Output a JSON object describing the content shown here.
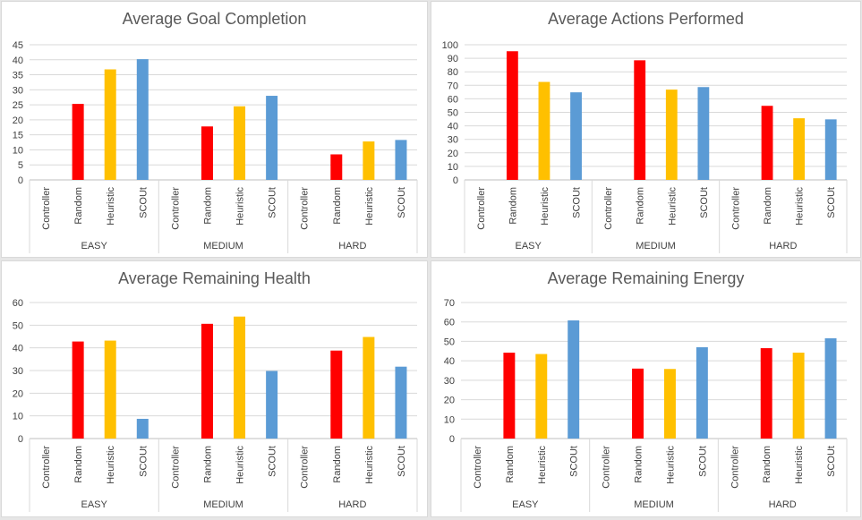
{
  "colors": {
    "Controller": "#7f7f7f",
    "Random": "#ff0000",
    "Heuristic": "#ffc000",
    "SCOUt": "#5b9bd5"
  },
  "chart_data": [
    {
      "type": "bar",
      "title": "Average Goal Completion",
      "groups": [
        "EASY",
        "MEDIUM",
        "HARD"
      ],
      "categories": [
        "Controller",
        "Random",
        "Heuristic",
        "SCOUt"
      ],
      "values": [
        [
          0,
          25.3,
          36.8,
          40.2
        ],
        [
          0,
          17.8,
          24.5,
          28.0
        ],
        [
          0,
          8.5,
          12.8,
          13.3
        ]
      ],
      "ylim": [
        0,
        45
      ],
      "yticks": [
        0,
        5,
        10,
        15,
        20,
        25,
        30,
        35,
        40,
        45
      ],
      "grid": true
    },
    {
      "type": "bar",
      "title": "Average Actions Performed",
      "groups": [
        "EASY",
        "MEDIUM",
        "HARD"
      ],
      "categories": [
        "Controller",
        "Random",
        "Heuristic",
        "SCOUt"
      ],
      "values": [
        [
          0,
          95.2,
          72.5,
          64.8
        ],
        [
          0,
          88.5,
          66.8,
          68.7
        ],
        [
          0,
          54.8,
          45.6,
          44.8
        ]
      ],
      "ylim": [
        0,
        100
      ],
      "yticks": [
        0,
        10,
        20,
        30,
        40,
        50,
        60,
        70,
        80,
        90,
        100
      ],
      "grid": true
    },
    {
      "type": "bar",
      "title": "Average Remaining Health",
      "groups": [
        "EASY",
        "MEDIUM",
        "HARD"
      ],
      "categories": [
        "Controller",
        "Random",
        "Heuristic",
        "SCOUt"
      ],
      "values": [
        [
          0,
          42.8,
          43.2,
          8.7
        ],
        [
          0,
          50.6,
          53.8,
          29.8
        ],
        [
          0,
          38.8,
          44.8,
          31.7
        ]
      ],
      "ylim": [
        0,
        60
      ],
      "yticks": [
        0,
        10,
        20,
        30,
        40,
        50,
        60
      ],
      "grid": true
    },
    {
      "type": "bar",
      "title": "Average Remaining Energy",
      "groups": [
        "EASY",
        "MEDIUM",
        "HARD"
      ],
      "categories": [
        "Controller",
        "Random",
        "Heuristic",
        "SCOUt"
      ],
      "values": [
        [
          0,
          44.2,
          43.5,
          60.8
        ],
        [
          0,
          36.0,
          35.8,
          47.0
        ],
        [
          0,
          46.5,
          44.2,
          51.6
        ]
      ],
      "ylim": [
        0,
        70
      ],
      "yticks": [
        0,
        10,
        20,
        30,
        40,
        50,
        60,
        70
      ],
      "grid": true
    }
  ]
}
